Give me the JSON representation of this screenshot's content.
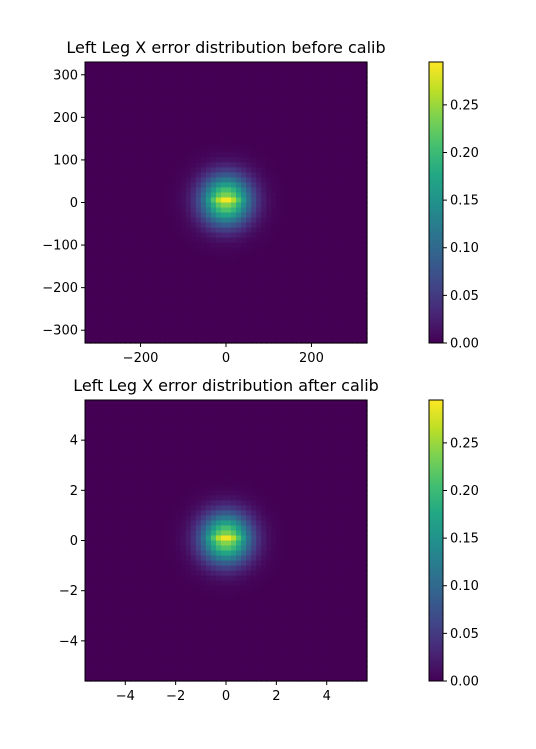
{
  "chart_data": [
    {
      "type": "heatmap",
      "title": "Left Leg X error distribution before calib",
      "xlabel": "",
      "ylabel": "",
      "xlim": [
        -330,
        330
      ],
      "ylim": [
        -330,
        330
      ],
      "xticks": [
        -200,
        0,
        200
      ],
      "yticks": [
        -300,
        -200,
        -100,
        0,
        100,
        200,
        300
      ],
      "distribution": {
        "center_x": 0,
        "center_y": 5,
        "sigma_x": 40,
        "sigma_y": 40
      },
      "colorbar": {
        "min": 0.0,
        "max": 0.295,
        "ticks": [
          "0.00",
          "0.05",
          "0.10",
          "0.15",
          "0.20",
          "0.25"
        ],
        "cmap": "viridis"
      }
    },
    {
      "type": "heatmap",
      "title": "Left Leg X error distribution after calib",
      "xlabel": "",
      "ylabel": "",
      "xlim": [
        -5.6,
        5.6
      ],
      "ylim": [
        -5.6,
        5.6
      ],
      "xticks": [
        -4,
        -2,
        0,
        2,
        4
      ],
      "yticks": [
        -4,
        -2,
        0,
        2,
        4
      ],
      "distribution": {
        "center_x": 0,
        "center_y": 0.08,
        "sigma_x": 0.68,
        "sigma_y": 0.68
      },
      "colorbar": {
        "min": 0.0,
        "max": 0.295,
        "ticks": [
          "0.00",
          "0.05",
          "0.10",
          "0.15",
          "0.20",
          "0.25"
        ],
        "cmap": "viridis"
      }
    }
  ]
}
